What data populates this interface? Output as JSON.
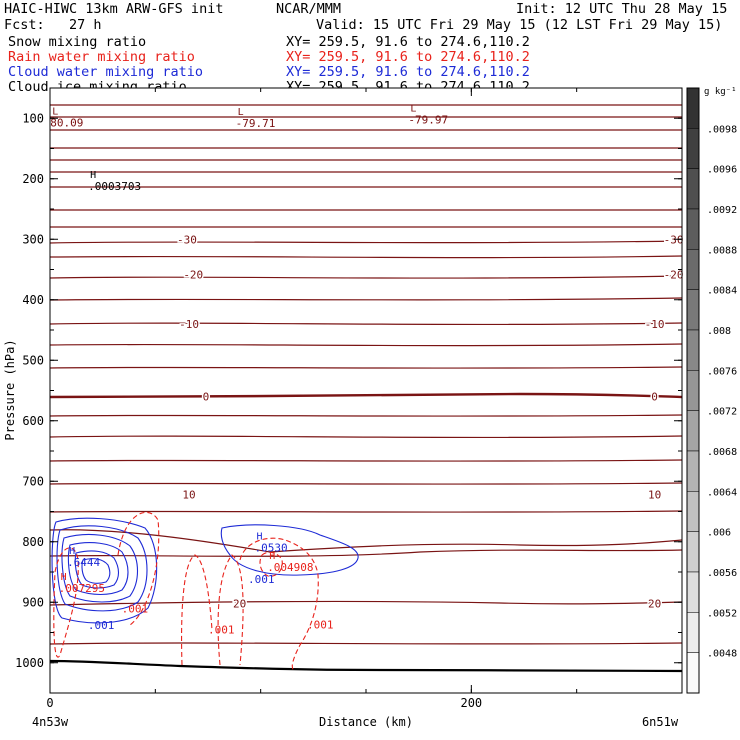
{
  "header": {
    "model": "HAIC-HIWC 13km ARW-GFS init",
    "org": "NCAR/MMM",
    "init": "Init: 12 UTC Thu 28 May 15",
    "fcst": "Fcst:   27 h",
    "valid": "Valid: 15 UTC Fri 29 May 15 (12 LST Fri 29 May 15)"
  },
  "fields": [
    {
      "name": "Snow mixing ratio",
      "xy": "XY= 259.5, 91.6 to 274.6,110.2",
      "color": "#000000"
    },
    {
      "name": "Rain water mixing ratio",
      "xy": "XY= 259.5, 91.6 to 274.6,110.2",
      "color": "#e8221b"
    },
    {
      "name": "Cloud water mixing ratio",
      "xy": "XY= 259.5, 91.6 to 274.6,110.2",
      "color": "#1e2bd6"
    },
    {
      "name": "Cloud ice mixing ratio",
      "xy": "XY= 259.5, 91.6 to 274.6,110.2",
      "color": "#000000"
    }
  ],
  "colorbar": {
    "unit_label": "g kg⁻¹",
    "ticks": [
      ".0098",
      ".0096",
      ".0092",
      ".0088",
      ".0084",
      ".008",
      ".0076",
      ".0072",
      ".0068",
      ".0064",
      ".006",
      ".0056",
      ".0052",
      ".0048"
    ]
  },
  "chart_data": {
    "type": "cross-section",
    "xlabel": "Distance (km)",
    "ylabel": "Pressure (hPa)",
    "xlim": [
      0,
      300
    ],
    "ylim": [
      1050,
      50
    ],
    "xticks": [
      0,
      200
    ],
    "yticks": [
      100,
      200,
      300,
      400,
      500,
      600,
      700,
      800,
      900,
      1000
    ],
    "x_endpoints": {
      "left": "4n53w",
      "right": "6n51w"
    },
    "temperature_contour_labels": [
      {
        "text": "-30",
        "x": [
          65,
          296
        ],
        "p": 300
      },
      {
        "text": "-20",
        "x": [
          68,
          296
        ],
        "p": 358
      },
      {
        "text": "-10",
        "x": [
          66,
          287
        ],
        "p": 440
      },
      {
        "text": "0",
        "x": [
          74,
          287
        ],
        "p": 560
      },
      {
        "text": "10",
        "x": [
          66,
          287
        ],
        "p": 722
      },
      {
        "text": "20",
        "x": [
          90,
          287
        ],
        "p": 902
      }
    ],
    "extrema": [
      {
        "kind": "L",
        "value": "80.09",
        "x": 2,
        "p": 110,
        "color": "#7a1010"
      },
      {
        "kind": "L",
        "value": "-79.71",
        "x": 90,
        "p": 111,
        "color": "#7a1010"
      },
      {
        "kind": "L",
        "value": "-79.97",
        "x": 172,
        "p": 105,
        "color": "#7a1010"
      },
      {
        "kind": "H",
        "value": ".0003703",
        "x": 20,
        "p": 215,
        "color": "#000000"
      },
      {
        "kind": "H",
        "value": ".6444",
        "x": 10,
        "p": 837,
        "color": "#1e2bd6"
      },
      {
        "kind": "H",
        "value": ".0530",
        "x": 99,
        "p": 813,
        "color": "#1e2bd6"
      },
      {
        "kind": "H",
        "value": ".004908",
        "x": 105,
        "p": 845,
        "color": "#e8221b"
      },
      {
        "kind": "H",
        "value": ".007295",
        "x": 6,
        "p": 880,
        "color": "#e8221b"
      }
    ],
    "cloud_water_labels": [
      {
        "text": ".001",
        "x": 18,
        "p": 944,
        "color": "#1e2bd6"
      },
      {
        "text": ".001",
        "x": 94,
        "p": 868,
        "color": "#1e2bd6"
      }
    ],
    "rain_labels": [
      {
        "text": ".001",
        "x": 34,
        "p": 917,
        "color": "#e8221b"
      },
      {
        "text": ".001",
        "x": 75,
        "p": 952,
        "color": "#e8221b"
      },
      {
        "text": ".001",
        "x": 122,
        "p": 943,
        "color": "#e8221b"
      }
    ]
  }
}
